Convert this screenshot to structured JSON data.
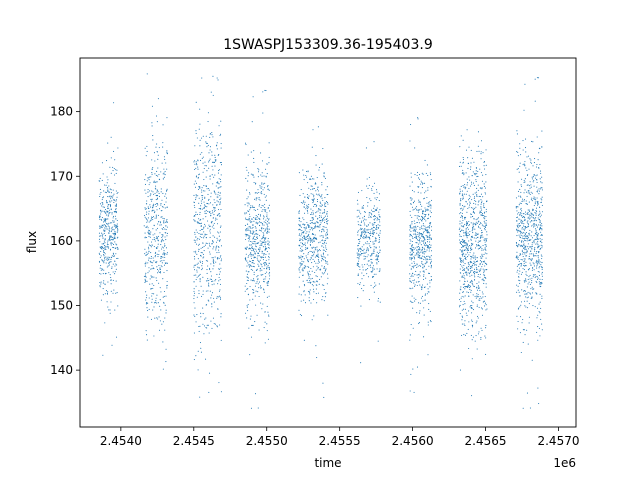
{
  "chart_data": {
    "type": "scatter",
    "title": "1SWASPJ153309.36-195403.9",
    "xlabel": "time",
    "ylabel": "flux",
    "x_offset_label": "1e6",
    "x_axis_note": "x values are shown in units of 1e6 (offset label)",
    "xlim": [
      2.45372,
      2.45712
    ],
    "ylim": [
      131.2,
      188.3
    ],
    "xticks": [
      2.454,
      2.4545,
      2.455,
      2.4555,
      2.456,
      2.4565,
      2.457
    ],
    "xtick_labels": [
      "2.4540",
      "2.4545",
      "2.4550",
      "2.4555",
      "2.4560",
      "2.4565",
      "2.4570"
    ],
    "yticks": [
      140,
      150,
      160,
      170,
      180
    ],
    "ytick_labels": [
      "140",
      "150",
      "160",
      "170",
      "180"
    ],
    "grid": false,
    "marker_color": "#1f77b4",
    "series": [
      {
        "name": "flux",
        "segments": [
          {
            "x_start": 2.45385,
            "x_end": 2.45398,
            "center": 160.5,
            "spread": 4.5,
            "wide": 12,
            "outlier_low": 135,
            "outlier_high": 185,
            "count": 420
          },
          {
            "x_start": 2.45416,
            "x_end": 2.45432,
            "center": 161.0,
            "spread": 7.0,
            "wide": 14,
            "outlier_low": 134,
            "outlier_high": 186,
            "count": 460
          },
          {
            "x_start": 2.4545,
            "x_end": 2.45469,
            "center": 162.0,
            "spread": 8.0,
            "wide": 16,
            "outlier_low": 134,
            "outlier_high": 186,
            "count": 560
          },
          {
            "x_start": 2.45485,
            "x_end": 2.45502,
            "center": 159.5,
            "spread": 5.5,
            "wide": 13,
            "outlier_low": 134,
            "outlier_high": 184,
            "count": 560
          },
          {
            "x_start": 2.45522,
            "x_end": 2.45542,
            "center": 159.5,
            "spread": 4.5,
            "wide": 12,
            "outlier_low": 135,
            "outlier_high": 183,
            "count": 580
          },
          {
            "x_start": 2.45562,
            "x_end": 2.45578,
            "center": 159.5,
            "spread": 3.5,
            "wide": 9,
            "outlier_low": 135,
            "outlier_high": 181,
            "count": 360
          },
          {
            "x_start": 2.45598,
            "x_end": 2.45613,
            "center": 159.0,
            "spread": 4.5,
            "wide": 12,
            "outlier_low": 134,
            "outlier_high": 184,
            "count": 520
          },
          {
            "x_start": 2.45632,
            "x_end": 2.45651,
            "center": 159.0,
            "spread": 6.0,
            "wide": 15,
            "outlier_low": 134,
            "outlier_high": 185,
            "count": 760
          },
          {
            "x_start": 2.45671,
            "x_end": 2.45689,
            "center": 160.0,
            "spread": 6.0,
            "wide": 15,
            "outlier_low": 134,
            "outlier_high": 186,
            "count": 700
          }
        ]
      }
    ]
  }
}
